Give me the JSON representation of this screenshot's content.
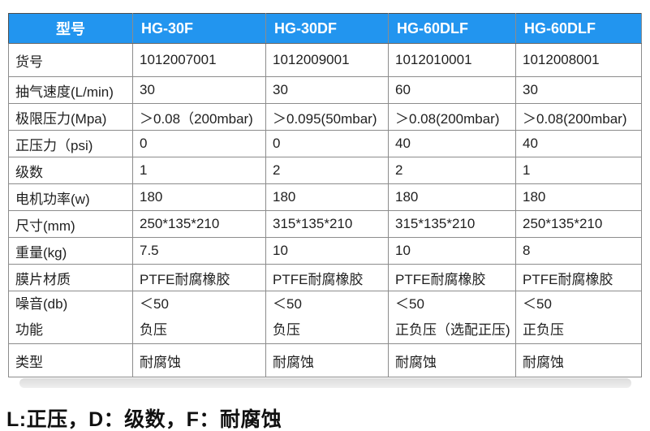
{
  "colors": {
    "header_bg": "#2295ef",
    "header_text": "#ffffff",
    "outer_border": "#4d4d4d",
    "inner_border": "#8c8c8c",
    "body_text": "#1f1f1f",
    "shadow_bar": "#e3e3e3"
  },
  "table": {
    "header": [
      "型号",
      "HG-30F",
      "HG-30DF",
      "HG-60DLF",
      "HG-60DLF"
    ],
    "rows": [
      {
        "label": "货号",
        "values": [
          "1012007001",
          "1012009001",
          "1012010001",
          "1012008001"
        ]
      },
      {
        "label": "抽气速度(L/min)",
        "values": [
          "30",
          "30",
          "60",
          "30"
        ]
      },
      {
        "label": "极限压力(Mpa)",
        "values": [
          "＞0.08（200mbar)",
          "＞0.095(50mbar)",
          "＞0.08(200mbar)",
          "＞0.08(200mbar)"
        ]
      },
      {
        "label": "正压力（psi)",
        "values": [
          "0",
          "0",
          "40",
          "40"
        ]
      },
      {
        "label": "级数",
        "values": [
          "1",
          "2",
          "2",
          "1"
        ]
      },
      {
        "label": "电机功率(w)",
        "values": [
          "180",
          "180",
          "180",
          "180"
        ]
      },
      {
        "label": "尺寸(mm)",
        "values": [
          "250*135*210",
          "315*135*210",
          "315*135*210",
          "250*135*210"
        ]
      },
      {
        "label": "重量(kg)",
        "values": [
          "7.5",
          "10",
          "10",
          "8"
        ]
      },
      {
        "label": "膜片材质",
        "values": [
          "PTFE耐腐橡胶",
          "PTFE耐腐橡胶",
          "PTFE耐腐橡胶",
          "PTFE耐腐橡胶"
        ]
      },
      {
        "label": "类型",
        "values": [
          "耐腐蚀",
          "耐腐蚀",
          "耐腐蚀",
          "耐腐蚀"
        ]
      }
    ],
    "dual_row": {
      "labels": [
        "噪音(db)",
        "功能"
      ],
      "values": [
        [
          "＜50",
          "负压"
        ],
        [
          "＜50",
          "负压"
        ],
        [
          "＜50",
          "正负压（选配正压)"
        ],
        [
          "＜50",
          "正负压"
        ]
      ]
    }
  },
  "footer_note": "L:正压，D：级数，F：耐腐蚀"
}
